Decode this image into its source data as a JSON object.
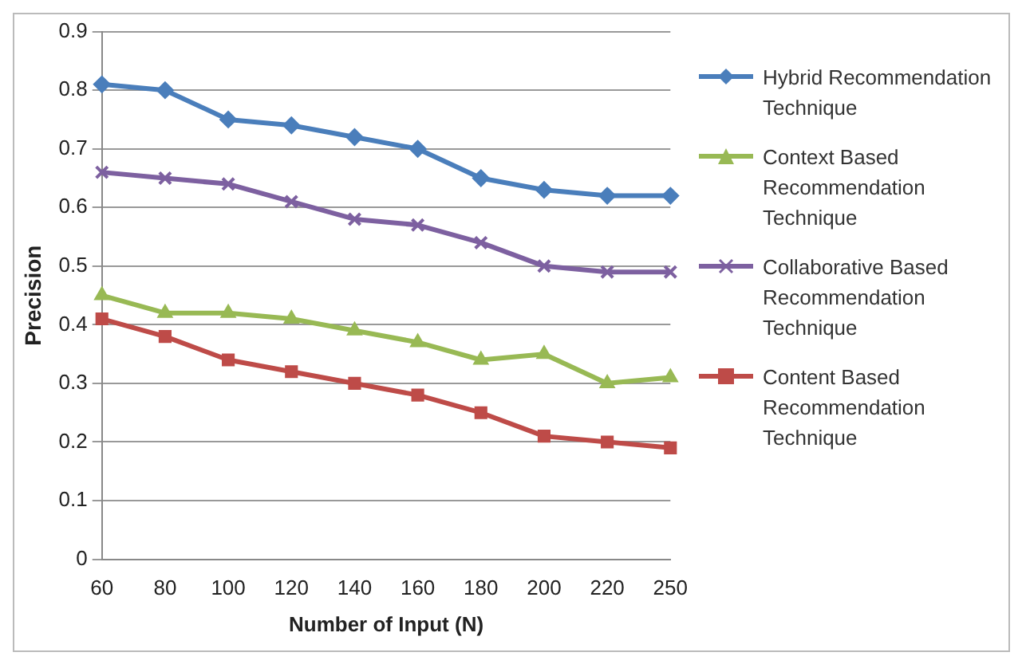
{
  "chart_data": {
    "type": "line",
    "xlabel": "Number of Input (N)",
    "ylabel": "Precision",
    "categories": [
      "60",
      "80",
      "100",
      "120",
      "140",
      "160",
      "180",
      "200",
      "220",
      "250"
    ],
    "series": [
      {
        "name": "Hybrid Recommendation Technique",
        "color": "#4a7ebb",
        "marker": "diamond",
        "values": [
          0.81,
          0.8,
          0.75,
          0.74,
          0.72,
          0.7,
          0.65,
          0.63,
          0.62,
          0.62
        ]
      },
      {
        "name": "Context Based Recommendation Technique",
        "color": "#98b954",
        "marker": "triangle",
        "values": [
          0.45,
          0.42,
          0.42,
          0.41,
          0.39,
          0.37,
          0.34,
          0.35,
          0.3,
          0.31
        ]
      },
      {
        "name": "Collaborative Based Recommendation Technique",
        "color": "#7d60a0",
        "marker": "cross",
        "values": [
          0.66,
          0.65,
          0.64,
          0.61,
          0.58,
          0.57,
          0.54,
          0.5,
          0.49,
          0.49
        ]
      },
      {
        "name": "Content Based Recommendation Technique",
        "color": "#be4b48",
        "marker": "square",
        "values": [
          0.41,
          0.38,
          0.34,
          0.32,
          0.3,
          0.28,
          0.25,
          0.21,
          0.2,
          0.19
        ]
      }
    ],
    "ylim": [
      0,
      0.9
    ],
    "yticks": [
      0,
      0.1,
      0.2,
      0.3,
      0.4,
      0.5,
      0.6,
      0.7,
      0.8,
      0.9
    ],
    "grid": "y",
    "legend": "right",
    "line_style": "solid"
  }
}
